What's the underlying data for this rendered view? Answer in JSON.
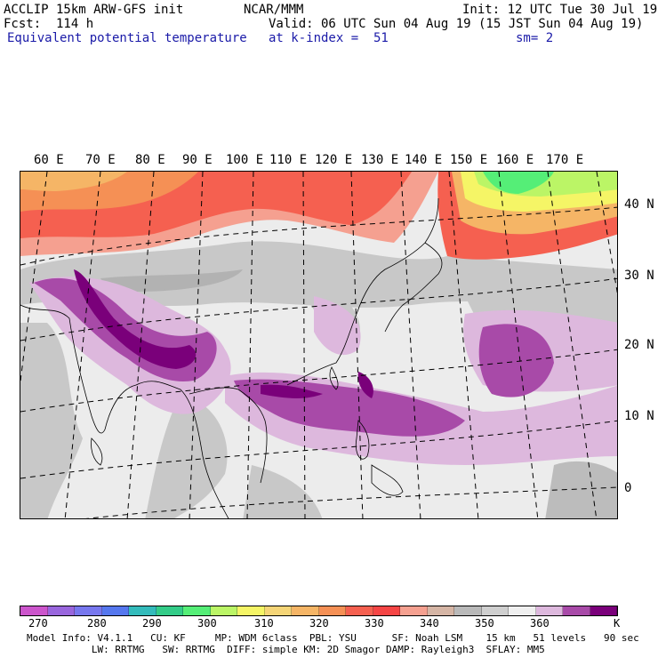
{
  "header": {
    "model": "ACCLIP 15km ARW-GFS init",
    "org": "NCAR/MMM",
    "init": "Init: 12 UTC Tue 30 Jul 19",
    "fcst": "Fcst:  114 h",
    "valid": "Valid: 06 UTC Sun 04 Aug 19 (15 JST Sun 04 Aug 19)",
    "field": "Equivalent potential temperature",
    "level": "at k-index =  51",
    "smooth": "sm= 2"
  },
  "map": {
    "lon_labels": [
      "60 E",
      "70 E",
      "80 E",
      "90 E",
      "100 E",
      "110 E",
      "120 E",
      "130 E",
      "140 E",
      "150 E",
      "160 E",
      "170 E"
    ],
    "lat_labels": [
      "40 N",
      "30 N",
      "20 N",
      "10 N",
      "0"
    ]
  },
  "colorbar": {
    "colors": [
      "#cc55cc",
      "#9966dd",
      "#7777ee",
      "#5577ee",
      "#33bbbb",
      "#33cc88",
      "#55ee77",
      "#bbf566",
      "#f5f566",
      "#f5d577",
      "#f5b566",
      "#f59055",
      "#f56050",
      "#f54545",
      "#f5a090",
      "#d5b5a5",
      "#b9b9b9",
      "#cfcfcf",
      "#efefef",
      "#ddb8dd",
      "#a84aa8",
      "#7a007a"
    ],
    "tick_labels": [
      "270",
      "280",
      "290",
      "300",
      "310",
      "320",
      "330",
      "340",
      "350",
      "360"
    ],
    "unit": "K"
  },
  "footer": {
    "line1": "Model Info: V4.1.1   CU: KF     MP: WDM 6class  PBL: YSU      SF: Noah LSM    15 km   51 levels   90 sec",
    "line2": "           LW: RRTMG   SW: RRTMG  DIFF: simple KM: 2D Smagor DAMP: Rayleigh3  SFLAY: MM5"
  }
}
